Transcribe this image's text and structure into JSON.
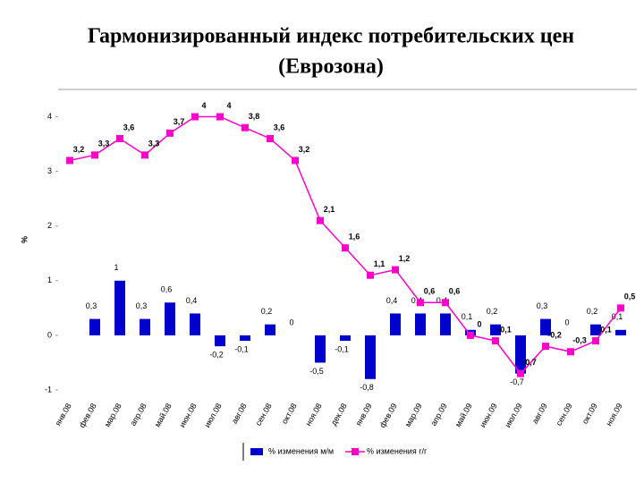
{
  "chart_data": {
    "type": "bar_line",
    "title": "Гармонизированный индекс потребительских цен",
    "subtitle": "(Еврозона)",
    "y_label": "%",
    "categories": [
      "янв.08",
      "фев.08",
      "мар.08",
      "апр.08",
      "май.08",
      "июн.08",
      "июл.08",
      "авг.08",
      "сен.08",
      "окт.08",
      "ноя.08",
      "дек.08",
      "янв.09",
      "фев.09",
      "мар.09",
      "апр.09",
      "май.09",
      "июн.09",
      "июл.09",
      "авг.09",
      "сен.09",
      "окт.09",
      "ноя.09"
    ],
    "series": [
      {
        "name": "% изменения м/м",
        "type": "bar",
        "color": "#0000cc",
        "values": [
          null,
          0.3,
          1,
          0.3,
          0.6,
          0.4,
          -0.2,
          -0.1,
          0.2,
          0,
          -0.5,
          -0.1,
          -0.8,
          0.4,
          0.4,
          0.4,
          0.1,
          0.2,
          -0.7,
          0.3,
          0,
          0.2,
          0.1
        ],
        "value_labels": [
          null,
          "0,3",
          "1",
          "0,3",
          "0,6",
          "0,4",
          "-0,2",
          "-0,1",
          "0,2",
          "0",
          "-0,5",
          "-0,1",
          "-0,8",
          "0,4",
          "0,4",
          "0,4",
          "0,1",
          "0,2",
          "-0,7",
          "0,3",
          "0",
          "0,2",
          "0,1"
        ]
      },
      {
        "name": "% изменения г/г",
        "type": "line",
        "color": "#ff00cc",
        "values": [
          3.2,
          3.3,
          3.6,
          3.3,
          3.7,
          4,
          4,
          3.8,
          3.6,
          3.2,
          2.1,
          1.6,
          1.1,
          1.2,
          0.6,
          0.6,
          0,
          -0.1,
          -0.7,
          -0.2,
          -0.3,
          -0.1,
          0.5
        ],
        "value_labels": [
          "3,2",
          "3,3",
          "3,6",
          "3,3",
          "3,7",
          "4",
          "4",
          "3,8",
          "3,6",
          "3,2",
          "2,1",
          "1,6",
          "1,1",
          "1,2",
          "0,6",
          "0,6",
          "0",
          "-0,1",
          "-0,7",
          "-0,2",
          "-0,3",
          "-0,1",
          "0,5"
        ]
      }
    ],
    "ylim": [
      -1,
      4.5
    ],
    "yticks": [
      -1,
      0,
      1,
      2,
      3,
      4
    ],
    "legend": "bottom"
  }
}
